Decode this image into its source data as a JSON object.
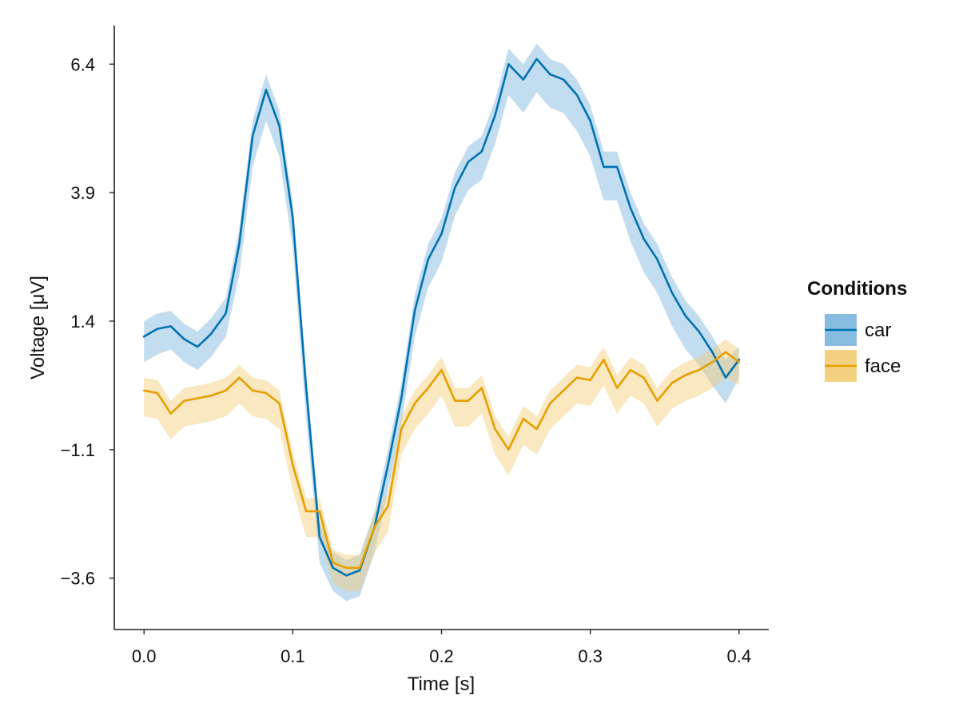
{
  "chart_data": {
    "type": "line",
    "xlabel": "Time [s]",
    "ylabel": "Voltage [μV]",
    "xlim": [
      -0.02,
      0.42
    ],
    "ylim": [
      -4.6,
      7.15
    ],
    "x_ticks": [
      0.0,
      0.1,
      0.2,
      0.3,
      0.4
    ],
    "x_tick_labels": [
      "0.0",
      "0.1",
      "0.2",
      "0.3",
      "0.4"
    ],
    "y_ticks": [
      6.4,
      3.9,
      1.4,
      -1.1,
      -3.6
    ],
    "y_tick_labels": [
      "6.4",
      "3.9",
      "1.4",
      "−1.1",
      "−3.6"
    ],
    "grid": false,
    "legend": {
      "title": "Conditions",
      "position": "right"
    },
    "x": [
      0.0,
      0.009,
      0.018,
      0.027,
      0.036,
      0.045,
      0.055,
      0.064,
      0.073,
      0.082,
      0.091,
      0.1,
      0.109,
      0.118,
      0.127,
      0.136,
      0.145,
      0.155,
      0.164,
      0.173,
      0.182,
      0.191,
      0.2,
      0.209,
      0.218,
      0.227,
      0.236,
      0.245,
      0.255,
      0.264,
      0.273,
      0.282,
      0.291,
      0.3,
      0.309,
      0.318,
      0.327,
      0.336,
      0.345,
      0.355,
      0.364,
      0.373,
      0.382,
      0.391,
      0.4
    ],
    "series": [
      {
        "name": "car",
        "color": "#0072b2",
        "band_color": "#7ab4dd",
        "values": [
          1.1,
          1.25,
          1.3,
          1.05,
          0.9,
          1.15,
          1.55,
          2.9,
          5.0,
          5.9,
          5.2,
          3.4,
          0.1,
          -2.8,
          -3.4,
          -3.55,
          -3.45,
          -2.6,
          -1.4,
          -0.1,
          1.6,
          2.6,
          3.1,
          4.0,
          4.5,
          4.7,
          5.4,
          6.4,
          6.1,
          6.5,
          6.2,
          6.1,
          5.8,
          5.3,
          4.4,
          4.4,
          3.6,
          3.0,
          2.6,
          1.95,
          1.5,
          1.2,
          0.8,
          0.3,
          0.65
        ],
        "lower": [
          0.6,
          0.75,
          0.85,
          0.6,
          0.45,
          0.7,
          1.1,
          2.3,
          4.4,
          5.3,
          4.6,
          2.8,
          -0.5,
          -3.3,
          -3.85,
          -4.05,
          -3.95,
          -3.1,
          -1.9,
          -0.6,
          1.1,
          2.05,
          2.55,
          3.45,
          3.95,
          4.15,
          4.85,
          5.8,
          5.45,
          5.85,
          5.55,
          5.45,
          5.1,
          4.6,
          3.75,
          3.75,
          2.95,
          2.35,
          1.95,
          1.3,
          0.85,
          0.55,
          0.15,
          -0.2,
          0.3
        ],
        "upper": [
          1.4,
          1.55,
          1.6,
          1.35,
          1.2,
          1.45,
          1.85,
          3.2,
          5.3,
          6.2,
          5.5,
          3.7,
          0.4,
          -2.5,
          -3.1,
          -3.25,
          -3.15,
          -2.3,
          -1.1,
          0.2,
          1.9,
          2.9,
          3.4,
          4.3,
          4.8,
          5.0,
          5.7,
          6.7,
          6.4,
          6.8,
          6.5,
          6.4,
          6.1,
          5.6,
          4.7,
          4.7,
          3.9,
          3.3,
          2.9,
          2.25,
          1.8,
          1.5,
          1.1,
          0.65,
          0.9
        ]
      },
      {
        "name": "face",
        "color": "#e69f00",
        "band_color": "#f2cc73",
        "values": [
          0.05,
          0.0,
          -0.4,
          -0.15,
          -0.1,
          -0.05,
          0.05,
          0.3,
          0.05,
          0.0,
          -0.2,
          -1.4,
          -2.3,
          -2.3,
          -3.3,
          -3.4,
          -3.4,
          -2.6,
          -2.2,
          -0.7,
          -0.2,
          0.1,
          0.45,
          -0.15,
          -0.15,
          0.1,
          -0.7,
          -1.1,
          -0.5,
          -0.7,
          -0.2,
          0.05,
          0.3,
          0.25,
          0.65,
          0.1,
          0.45,
          0.3,
          -0.15,
          0.2,
          0.35,
          0.45,
          0.6,
          0.8,
          0.6
        ],
        "lower": [
          -0.45,
          -0.5,
          -0.9,
          -0.65,
          -0.6,
          -0.55,
          -0.45,
          -0.2,
          -0.45,
          -0.5,
          -0.7,
          -1.9,
          -2.8,
          -2.8,
          -3.7,
          -3.85,
          -3.85,
          -3.1,
          -2.7,
          -1.2,
          -0.7,
          -0.4,
          -0.05,
          -0.65,
          -0.65,
          -0.4,
          -1.2,
          -1.6,
          -1.0,
          -1.2,
          -0.7,
          -0.45,
          -0.2,
          -0.25,
          0.15,
          -0.4,
          -0.05,
          -0.2,
          -0.65,
          -0.3,
          -0.15,
          -0.05,
          0.1,
          0.3,
          0.15
        ],
        "upper": [
          0.3,
          0.25,
          -0.15,
          0.1,
          0.15,
          0.2,
          0.3,
          0.55,
          0.3,
          0.25,
          0.05,
          -1.15,
          -2.05,
          -2.05,
          -3.05,
          -3.15,
          -3.15,
          -2.35,
          -1.95,
          -0.45,
          0.05,
          0.35,
          0.7,
          0.1,
          0.1,
          0.35,
          -0.45,
          -0.85,
          -0.25,
          -0.45,
          0.05,
          0.3,
          0.55,
          0.5,
          0.9,
          0.35,
          0.7,
          0.55,
          0.1,
          0.45,
          0.6,
          0.7,
          0.85,
          1.05,
          0.85
        ]
      }
    ]
  }
}
